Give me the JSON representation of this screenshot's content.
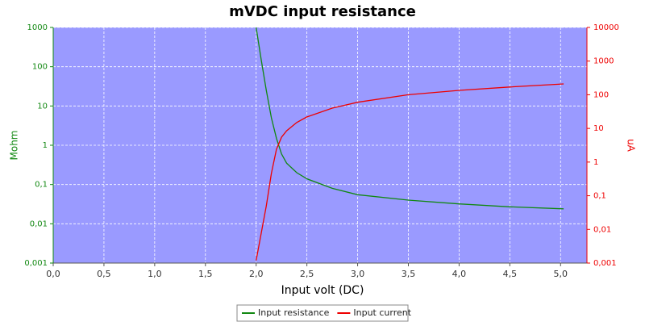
{
  "chart_data": {
    "type": "line",
    "title": "mVDC input resistance",
    "x_label": "Input volt (DC)",
    "y_label": "Mohm",
    "y2_label": "uA",
    "x": [
      2.0,
      2.05,
      2.1,
      2.15,
      2.2,
      2.25,
      2.3,
      2.4,
      2.5,
      2.75,
      3.0,
      3.5,
      4.0,
      4.5,
      5.03
    ],
    "series": [
      {
        "name": "Input resistance",
        "color": "#118811",
        "values": [
          1000,
          150,
          25,
          5,
          1.5,
          0.6,
          0.35,
          0.2,
          0.14,
          0.08,
          0.055,
          0.04,
          0.032,
          0.027,
          0.024
        ]
      },
      {
        "name": "Input current",
        "color": "#ee0000",
        "axis": "y2",
        "values": [
          0.0012,
          0.0077,
          0.05,
          0.46,
          2.4,
          5.5,
          8.5,
          15,
          22,
          40,
          60,
          100,
          135,
          170,
          210
        ]
      }
    ],
    "xlim": [
      0,
      5.26
    ],
    "xticks": [
      {
        "value": 0,
        "label": "0,0"
      },
      {
        "value": 0.5,
        "label": "0,5"
      },
      {
        "value": 1,
        "label": "1,0"
      },
      {
        "value": 1.5,
        "label": "1,5"
      },
      {
        "value": 2,
        "label": "2,0"
      },
      {
        "value": 2.5,
        "label": "2,5"
      },
      {
        "value": 3,
        "label": "3,0"
      },
      {
        "value": 3.5,
        "label": "3,5"
      },
      {
        "value": 4,
        "label": "4,0"
      },
      {
        "value": 4.5,
        "label": "4,5"
      },
      {
        "value": 5,
        "label": "5,0"
      }
    ],
    "ylim": [
      0.001,
      1000
    ],
    "yticks": [
      1000,
      100,
      10,
      1,
      {
        "value": 0.1,
        "label": "0,1"
      },
      {
        "value": 0.01,
        "label": "0,01"
      },
      {
        "value": 0.001,
        "label": "0,001"
      }
    ],
    "y2lim": [
      0.001,
      10000
    ],
    "y2ticks": [
      10000,
      1000,
      100,
      10,
      1,
      {
        "value": 0.1,
        "label": "0,1"
      },
      {
        "value": 0.01,
        "label": "0,01"
      },
      {
        "value": 0.001,
        "label": "0,001"
      }
    ],
    "log_y": true,
    "log_y2": true,
    "grid": true,
    "legend": "bottom"
  }
}
